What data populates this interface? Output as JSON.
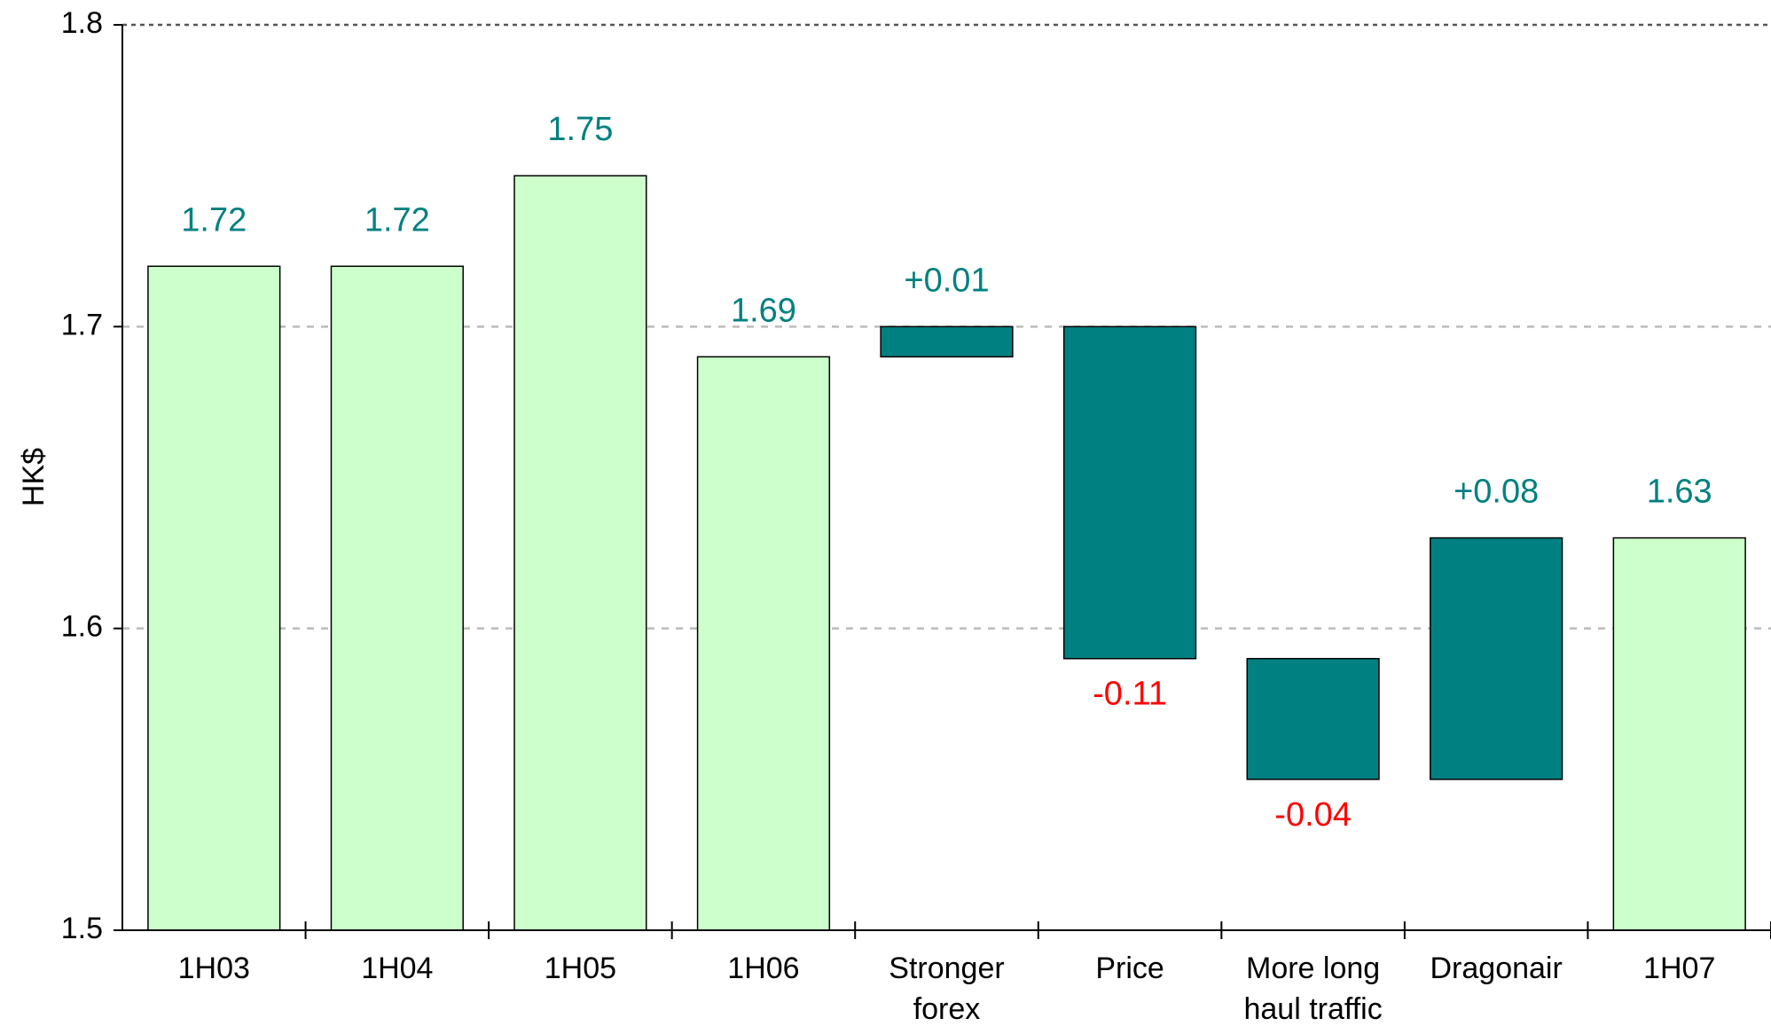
{
  "chart_data": {
    "type": "waterfall",
    "y_label": "HK$",
    "categories": [
      "1H03",
      "1H04",
      "1H05",
      "1H06",
      "Stronger forex",
      "Price",
      "More long haul traffic",
      "Dragonair",
      "1H07"
    ],
    "values": [
      1.72,
      1.72,
      1.75,
      1.69,
      0.01,
      -0.11,
      -0.04,
      0.08,
      1.63
    ],
    "value_labels": [
      "1.72",
      "1.72",
      "1.75",
      "1.69",
      "+0.01",
      "-0.11",
      "-0.04",
      "+0.08",
      "1.63"
    ],
    "measure": [
      "total",
      "total",
      "total",
      "total",
      "relative",
      "relative",
      "relative",
      "relative",
      "total"
    ],
    "total_color": "#ccffcc",
    "delta_color": "#008080",
    "label_color": "#008080",
    "negative_label_color": "#ff0000",
    "ylim": [
      1.5,
      1.8
    ],
    "yticks": [
      1.5,
      1.6,
      1.7,
      1.8
    ],
    "grid": true
  }
}
